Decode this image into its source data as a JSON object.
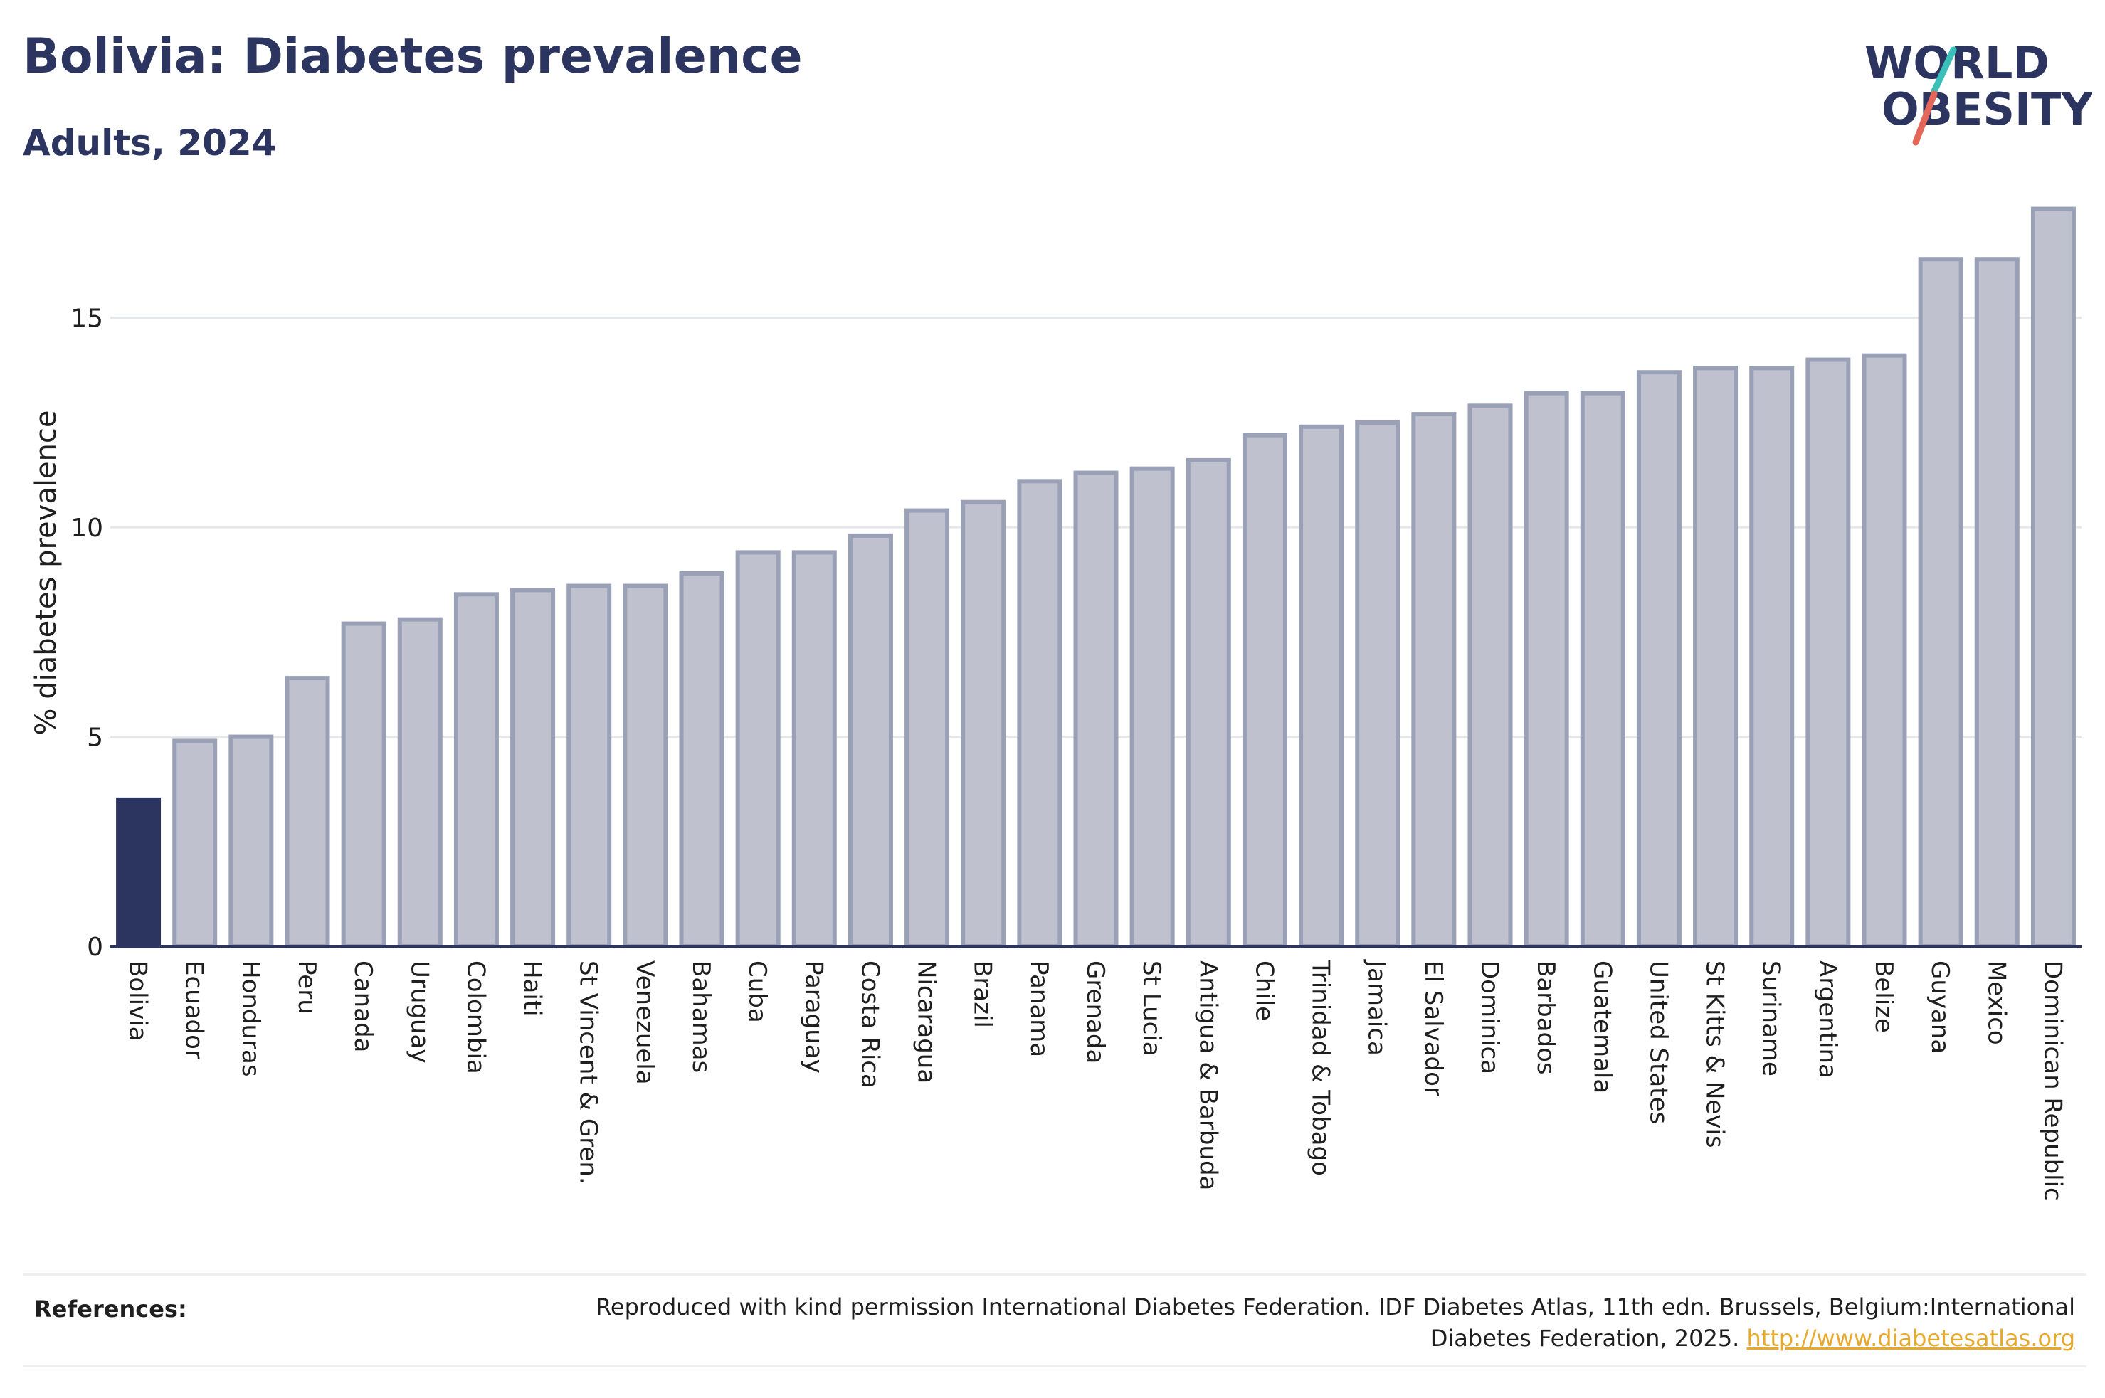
{
  "header": {
    "title": "Bolivia: Diabetes prevalence",
    "subtitle": "Adults, 2024"
  },
  "logo": {
    "line1": "WORLD",
    "line2": "OBESITY",
    "accent_colors": [
      "#3bbfb9",
      "#e5675a"
    ]
  },
  "chart_data": {
    "type": "bar",
    "ylabel": "% diabetes prevalence",
    "xlabel": "",
    "ylim": [
      0,
      18
    ],
    "yticks": [
      0,
      5,
      10,
      15
    ],
    "grid": true,
    "highlight_category": "Bolivia",
    "colors": {
      "highlight": "#2b3560",
      "default_fill": "#bfc2ce",
      "default_stroke": "#9aa0b6",
      "grid": "#e6e7eb",
      "axis": "#2b3560"
    },
    "categories": [
      "Bolivia",
      "Ecuador",
      "Honduras",
      "Peru",
      "Canada",
      "Uruguay",
      "Colombia",
      "Haiti",
      "St Vincent & Gren.",
      "Venezuela",
      "Bahamas",
      "Cuba",
      "Paraguay",
      "Costa Rica",
      "Nicaragua",
      "Brazil",
      "Panama",
      "Grenada",
      "St Lucia",
      "Antigua & Barbuda",
      "Chile",
      "Trinidad & Tobago",
      "Jamaica",
      "El Salvador",
      "Dominica",
      "Barbados",
      "Guatemala",
      "United States",
      "St Kitts & Nevis",
      "Suriname",
      "Argentina",
      "Belize",
      "Guyana",
      "Mexico",
      "Dominican Republic"
    ],
    "values": [
      3.5,
      4.9,
      5.0,
      6.4,
      7.7,
      7.8,
      8.4,
      8.5,
      8.6,
      8.6,
      8.9,
      9.4,
      9.4,
      9.8,
      10.4,
      10.6,
      11.1,
      11.3,
      11.4,
      11.6,
      12.2,
      12.4,
      12.5,
      12.7,
      12.9,
      13.2,
      13.2,
      13.7,
      13.8,
      13.8,
      14.0,
      14.1,
      16.4,
      16.4,
      17.6
    ]
  },
  "references": {
    "label": "References:",
    "text": "Reproduced with kind permission International Diabetes Federation. IDF Diabetes Atlas, 11th edn. Brussels, Belgium:International Diabetes Federation, 2025.",
    "link": "http://www.diabetesatlas.org"
  }
}
